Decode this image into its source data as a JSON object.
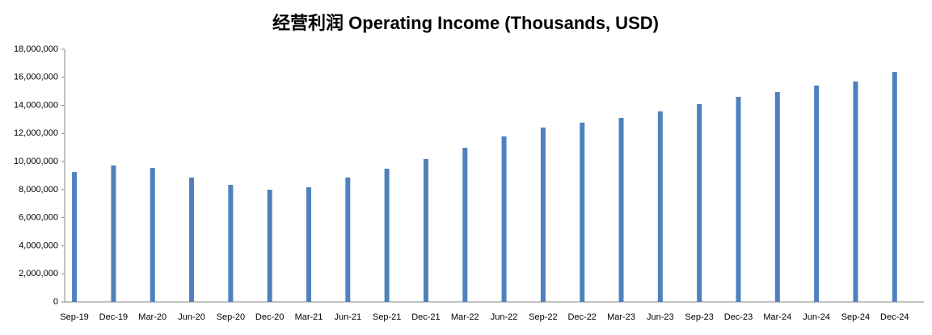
{
  "chart_data": {
    "type": "bar",
    "title": "经营利润 Operating Income (Thousands, USD)",
    "categories": [
      "Sep-19",
      "Dec-19",
      "Mar-20",
      "Jun-20",
      "Sep-20",
      "Dec-20",
      "Mar-21",
      "Jun-21",
      "Sep-21",
      "Dec-21",
      "Mar-22",
      "Jun-22",
      "Sep-22",
      "Dec-22",
      "Mar-23",
      "Jun-23",
      "Sep-23",
      "Dec-23",
      "Mar-24",
      "Jun-24",
      "Sep-24",
      "Dec-24"
    ],
    "values": [
      9250000,
      9720000,
      9550000,
      8860000,
      8340000,
      7990000,
      8170000,
      8860000,
      9490000,
      10180000,
      10980000,
      11790000,
      12420000,
      12770000,
      13110000,
      13570000,
      14090000,
      14610000,
      14950000,
      15410000,
      15700000,
      16390000
    ],
    "color": "#4f81bd",
    "ylim": [
      0,
      18000000
    ],
    "yticks": [
      0,
      {
        "value": 2000000,
        "label": "2,000,000"
      },
      {
        "value": 4000000,
        "label": "4,000,000"
      },
      {
        "value": 6000000,
        "label": "6,000,000"
      },
      {
        "value": 8000000,
        "label": "8,000,000"
      },
      {
        "value": 10000000,
        "label": "10,000,000"
      },
      {
        "value": 12000000,
        "label": "12,000,000"
      },
      {
        "value": 14000000,
        "label": "14,000,000"
      },
      {
        "value": 16000000,
        "label": "16,000,000"
      },
      {
        "value": 18000000,
        "label": "18,000,000"
      }
    ],
    "grid": false
  }
}
